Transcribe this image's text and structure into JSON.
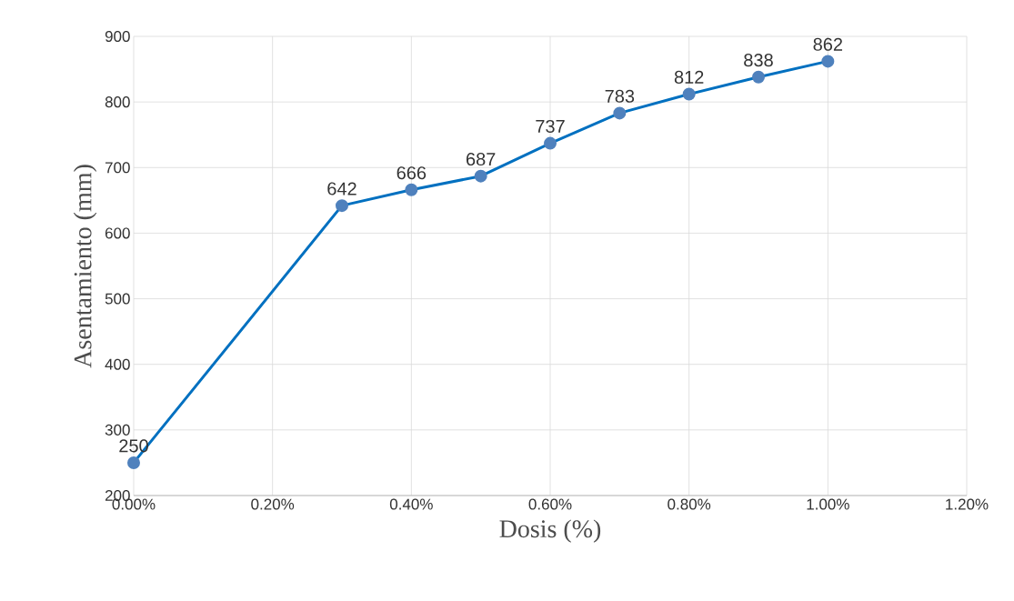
{
  "chart_data": {
    "type": "line",
    "xlabel": "Dosis (%)",
    "ylabel": "Asentamiento (mm)",
    "x": [
      0,
      0.3,
      0.4,
      0.5,
      0.6,
      0.7,
      0.8,
      0.9,
      1.0
    ],
    "series": [
      {
        "color": "#0070c0",
        "values": [
          250,
          642,
          666,
          687,
          737,
          783,
          812,
          838,
          862
        ]
      }
    ],
    "xlim": [
      0,
      1.2
    ],
    "xticks": [
      {
        "value": 0,
        "label": "0.00%"
      },
      {
        "value": 0.2,
        "label": "0.20%"
      },
      {
        "value": 0.4,
        "label": "0.40%"
      },
      {
        "value": 0.6,
        "label": "0.60%"
      },
      {
        "value": 0.8,
        "label": "0.80%"
      },
      {
        "value": 1.0,
        "label": "1.00%"
      },
      {
        "value": 1.2,
        "label": "1.20%"
      }
    ],
    "ylim": [
      200,
      900
    ],
    "yticks": [
      200,
      300,
      400,
      500,
      600,
      700,
      800,
      900
    ],
    "grid": true,
    "marker": "circle",
    "line_style": "solid",
    "data_labels": true
  }
}
